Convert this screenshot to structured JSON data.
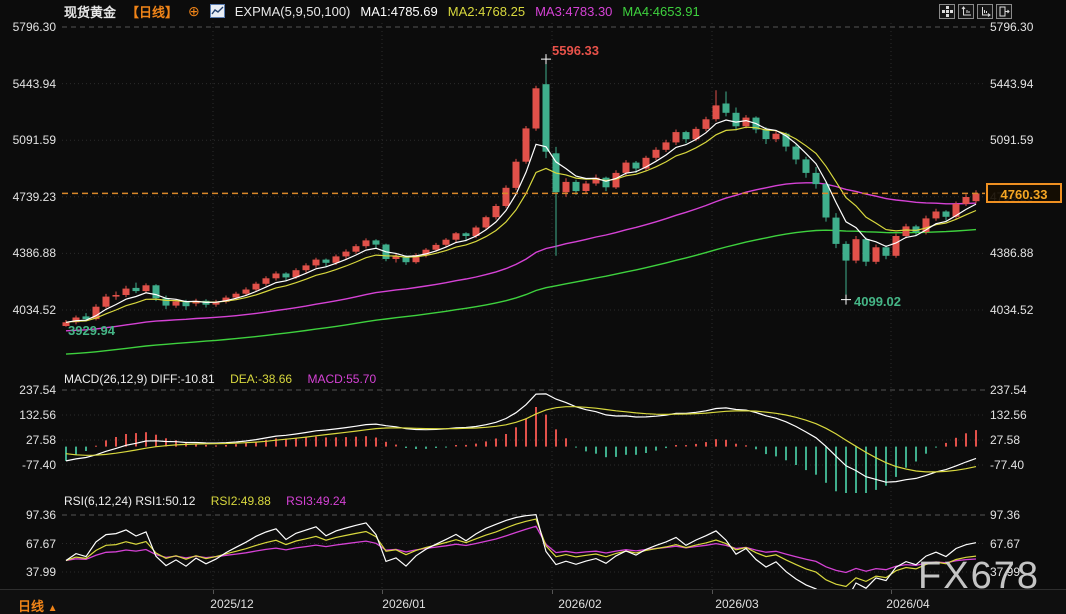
{
  "header": {
    "title": "现货黄金",
    "period_tag": "【日线】",
    "plus_icon": "⊕",
    "indicator": "EXPMA(5,9,50,100)",
    "ma_parts": [
      {
        "text": "MA1:4785.69",
        "color": "#ffffff"
      },
      {
        "text": "MA2:4768.25",
        "color": "#d8d83e"
      },
      {
        "text": "MA3:4783.30",
        "color": "#d542d5"
      },
      {
        "text": "MA4:4653.91",
        "color": "#3ed13e"
      }
    ]
  },
  "toolbar": {
    "icons": [
      "pan-icon",
      "axis-left-icon",
      "axis-right-icon",
      "exit-icon"
    ]
  },
  "main_chart": {
    "y_axis": [
      "5796.30",
      "5443.94",
      "5091.59",
      "4739.23",
      "4386.88",
      "4034.52"
    ],
    "current_price": "4760.33",
    "high_annotation": "5596.33",
    "low_annotation": "4099.02",
    "start_low_annotation": "3929.94"
  },
  "macd_panel": {
    "parts": [
      {
        "text": "MACD(26,12,9) DIFF:-10.81",
        "color": "#eeeeee"
      },
      {
        "text": "DEA:-38.66",
        "color": "#d8d83e"
      },
      {
        "text": "MACD:55.70",
        "color": "#d542d5"
      }
    ],
    "y_axis": [
      "237.54",
      "132.56",
      "27.58",
      "-77.40"
    ]
  },
  "rsi_panel": {
    "parts": [
      {
        "text": "RSI(6,12,24) RSI1:50.12",
        "color": "#eeeeee"
      },
      {
        "text": "RSI2:49.88",
        "color": "#d8d83e"
      },
      {
        "text": "RSI3:49.24",
        "color": "#d542d5"
      }
    ],
    "y_axis": [
      "97.36",
      "67.67",
      "37.99"
    ]
  },
  "bottom_bar": {
    "period_label": "日线",
    "period_arrow": "▲",
    "dates": [
      "2025/12",
      "2026/01",
      "2026/02",
      "2026/03",
      "2026/04"
    ]
  },
  "watermark": "FX678",
  "colors": {
    "background": "#0c0c0c",
    "up": "#e1514a",
    "down": "#3fae8c",
    "ma_lines": [
      "#ffffff",
      "#d8d83e",
      "#d542d5",
      "#3ed13e"
    ],
    "accent_orange": "#f08418",
    "current_price": "#f5a623",
    "high_label": "#e8524a",
    "low_label": "#45b586",
    "axis_text": "#e2e2e2",
    "grid_dashed": "#555555",
    "grid_dotted": "#2b2b2b",
    "watermark": "#d4d4d4"
  },
  "chart_data": {
    "type": "candlestick",
    "title": "现货黄金 日线 (Spot Gold Daily)",
    "x_axis_labels": [
      "2025/12",
      "2026/01",
      "2026/02",
      "2026/03",
      "2026/04"
    ],
    "y_axis_ticks": [
      5796.3,
      5443.94,
      5091.59,
      4739.23,
      4386.88,
      4034.52
    ],
    "marked_high": 5596.33,
    "marked_low": 4099.02,
    "start_low": 3929.94,
    "current_price": 4760.33,
    "high_index": 48,
    "low_index": 78,
    "expma": {
      "params": [
        5,
        9,
        50,
        100
      ],
      "last_values": [
        4785.69,
        4768.25,
        4783.3,
        4653.91
      ]
    },
    "macd": {
      "params": [
        26,
        12,
        9
      ],
      "diff": -10.81,
      "dea": -38.66,
      "macd": 55.7,
      "y_ticks": [
        237.54,
        132.56,
        27.58,
        -77.4
      ]
    },
    "rsi": {
      "params": [
        6,
        12,
        24
      ],
      "values": [
        50.12,
        49.88,
        49.24
      ],
      "y_ticks": [
        97.36,
        67.67,
        37.99
      ]
    },
    "candles": [
      [
        3935,
        3972,
        3929.94,
        3958
      ],
      [
        3958,
        4000,
        3945,
        3988
      ],
      [
        3995,
        4015,
        3965,
        3978
      ],
      [
        3978,
        4070,
        3970,
        4055
      ],
      [
        4055,
        4135,
        4045,
        4118
      ],
      [
        4118,
        4150,
        4098,
        4128
      ],
      [
        4128,
        4185,
        4115,
        4168
      ],
      [
        4172,
        4205,
        4140,
        4152
      ],
      [
        4152,
        4200,
        4138,
        4188
      ],
      [
        4188,
        4195,
        4090,
        4108
      ],
      [
        4108,
        4125,
        4040,
        4062
      ],
      [
        4062,
        4100,
        4048,
        4088
      ],
      [
        4088,
        4098,
        4035,
        4058
      ],
      [
        4075,
        4105,
        4058,
        4092
      ],
      [
        4092,
        4102,
        4050,
        4068
      ],
      [
        4068,
        4098,
        4055,
        4086
      ],
      [
        4086,
        4125,
        4075,
        4112
      ],
      [
        4112,
        4148,
        4100,
        4136
      ],
      [
        4136,
        4175,
        4122,
        4162
      ],
      [
        4162,
        4210,
        4150,
        4198
      ],
      [
        4198,
        4245,
        4185,
        4232
      ],
      [
        4232,
        4275,
        4218,
        4262
      ],
      [
        4262,
        4270,
        4215,
        4238
      ],
      [
        4238,
        4295,
        4228,
        4282
      ],
      [
        4282,
        4325,
        4268,
        4312
      ],
      [
        4312,
        4360,
        4298,
        4348
      ],
      [
        4348,
        4355,
        4305,
        4328
      ],
      [
        4328,
        4380,
        4315,
        4368
      ],
      [
        4368,
        4412,
        4352,
        4398
      ],
      [
        4398,
        4445,
        4385,
        4432
      ],
      [
        4432,
        4480,
        4418,
        4468
      ],
      [
        4468,
        4475,
        4420,
        4442
      ],
      [
        4442,
        4448,
        4338,
        4352
      ],
      [
        4352,
        4385,
        4330,
        4368
      ],
      [
        4368,
        4375,
        4315,
        4332
      ],
      [
        4332,
        4388,
        4322,
        4376
      ],
      [
        4376,
        4420,
        4362,
        4410
      ],
      [
        4410,
        4452,
        4398,
        4440
      ],
      [
        4440,
        4482,
        4425,
        4472
      ],
      [
        4472,
        4520,
        4458,
        4512
      ],
      [
        4512,
        4518,
        4462,
        4495
      ],
      [
        4495,
        4560,
        4482,
        4548
      ],
      [
        4548,
        4622,
        4535,
        4612
      ],
      [
        4612,
        4695,
        4598,
        4682
      ],
      [
        4682,
        4810,
        4670,
        4795
      ],
      [
        4795,
        4975,
        4780,
        4958
      ],
      [
        4958,
        5180,
        4945,
        5165
      ],
      [
        5165,
        5430,
        5150,
        5415
      ],
      [
        5440,
        5596.33,
        4980,
        5020
      ],
      [
        5010,
        5050,
        4372,
        4768
      ],
      [
        4768,
        4855,
        4740,
        4832
      ],
      [
        4832,
        4845,
        4752,
        4775
      ],
      [
        4775,
        4838,
        4758,
        4822
      ],
      [
        4822,
        4878,
        4808,
        4858
      ],
      [
        4858,
        4865,
        4775,
        4798
      ],
      [
        4798,
        4905,
        4788,
        4888
      ],
      [
        4888,
        4968,
        4872,
        4952
      ],
      [
        4952,
        4962,
        4888,
        4915
      ],
      [
        4915,
        4995,
        4902,
        4982
      ],
      [
        4982,
        5048,
        4968,
        5032
      ],
      [
        5032,
        5095,
        5018,
        5078
      ],
      [
        5078,
        5158,
        5062,
        5142
      ],
      [
        5142,
        5150,
        5072,
        5098
      ],
      [
        5098,
        5175,
        5085,
        5162
      ],
      [
        5162,
        5238,
        5148,
        5222
      ],
      [
        5222,
        5402,
        5208,
        5308
      ],
      [
        5320,
        5395,
        5240,
        5262
      ],
      [
        5262,
        5295,
        5152,
        5178
      ],
      [
        5178,
        5248,
        5165,
        5232
      ],
      [
        5232,
        5240,
        5135,
        5158
      ],
      [
        5158,
        5172,
        5068,
        5098
      ],
      [
        5098,
        5150,
        5080,
        5132
      ],
      [
        5132,
        5140,
        5022,
        5052
      ],
      [
        5052,
        5065,
        4942,
        4972
      ],
      [
        4972,
        4988,
        4858,
        4888
      ],
      [
        4888,
        4925,
        4790,
        4818
      ],
      [
        4818,
        4830,
        4585,
        4610
      ],
      [
        4610,
        4638,
        4420,
        4446
      ],
      [
        4446,
        4462,
        4099.02,
        4342
      ],
      [
        4342,
        4495,
        4325,
        4475
      ],
      [
        4475,
        4486,
        4308,
        4335
      ],
      [
        4335,
        4442,
        4320,
        4425
      ],
      [
        4425,
        4438,
        4350,
        4372
      ],
      [
        4372,
        4510,
        4360,
        4495
      ],
      [
        4495,
        4572,
        4480,
        4555
      ],
      [
        4555,
        4565,
        4495,
        4520
      ],
      [
        4520,
        4622,
        4505,
        4605
      ],
      [
        4605,
        4665,
        4590,
        4648
      ],
      [
        4648,
        4656,
        4592,
        4615
      ],
      [
        4615,
        4710,
        4602,
        4695
      ],
      [
        4695,
        4755,
        4682,
        4738
      ],
      [
        4712,
        4780,
        4698,
        4760.33
      ]
    ]
  }
}
